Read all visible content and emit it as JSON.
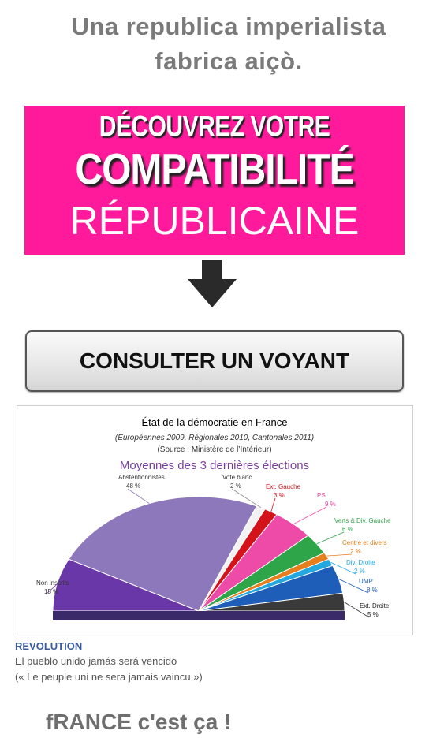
{
  "headline": {
    "line1": "Una republica imperialista",
    "line2": "fabrica aiçò."
  },
  "banner": {
    "line1": "DÉCOUVREZ VOTRE",
    "line2": "COMPATIBILITÉ",
    "line3": "RÉPUBLICAINE"
  },
  "button": {
    "label": "CONSULTER UN VOYANT"
  },
  "chart": {
    "title": "État de la démocratie  en France",
    "subtitle": "(Européennes  2009, Régionales 2010, Cantonales 2011)",
    "source": "(Source : Ministère de l’Intérieur)",
    "heading": "Moyennes des 3 dernières élections",
    "colors": {
      "title": "#222222",
      "heading": "#7b3fa0"
    }
  },
  "chart_data": {
    "type": "pie",
    "title": "État de la démocratie  en France",
    "slices": [
      {
        "label": "Non inscrits",
        "value": 15,
        "text": "15 %",
        "color": "#6a37a8"
      },
      {
        "label": "Abstentionnistes",
        "value": 48,
        "text": "48 %",
        "color": "#8d78bb"
      },
      {
        "label": "Vote blanc",
        "value": 2,
        "text": "2 %",
        "color": "#f2f2f2"
      },
      {
        "label": "Ext. Gauche",
        "value": 3,
        "text": "3 %",
        "color": "#d4121a"
      },
      {
        "label": "PS",
        "value": 9,
        "text": "9 %",
        "color": "#ee4aa8"
      },
      {
        "label": "Verts & Div. Gauche",
        "value": 6,
        "text": "6 %",
        "color": "#2fa54a"
      },
      {
        "label": "Centre et divers",
        "value": 2,
        "text": "2 %",
        "color": "#e67e1e"
      },
      {
        "label": "Div. Droite",
        "value": 2,
        "text": "2 %",
        "color": "#22a8df"
      },
      {
        "label": "UMP",
        "value": 8,
        "text": "8 %",
        "color": "#1f5eb8"
      },
      {
        "label": "Ext. Droite",
        "value": 5,
        "text": "5 %",
        "color": "#3a3a3a"
      }
    ],
    "label_colors": [
      "#333333",
      "#333333",
      "#333333",
      "#d4121a",
      "#e0409a",
      "#2fa54a",
      "#e67e1e",
      "#22a8df",
      "#1f5eb8",
      "#222222"
    ]
  },
  "caption": {
    "title": "REVOLUTION",
    "line1": "El pueblo unido jamás será vencido",
    "line2": "(« Le peuple uni ne sera jamais vaincu »)"
  },
  "footer": "fRANCE c'est ça !"
}
